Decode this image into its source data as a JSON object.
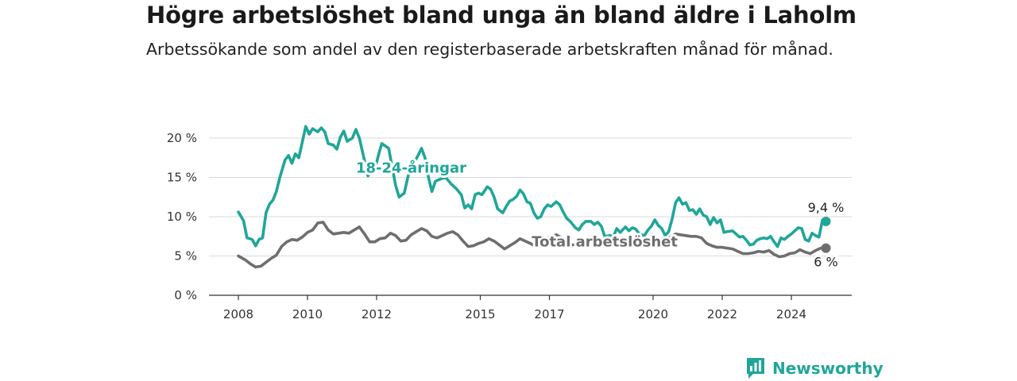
{
  "header": {
    "title": "Högre arbetslöshet bland unga än bland äldre i Laholm",
    "subtitle": "Arbetssökande som andel av den registerbaserade arbetskraften månad för månad."
  },
  "logo": {
    "text": "Newsworthy",
    "icon": "bar-chart-bubble-icon"
  },
  "colors": {
    "youth": "#1fa699",
    "total": "#6e6e6e",
    "grid": "#d9d9d9",
    "axis": "#333333"
  },
  "chart_data": {
    "type": "line",
    "title": "Högre arbetslöshet bland unga än bland äldre i Laholm",
    "subtitle": "Arbetssökande som andel av den registerbaserade arbetskraften månad för månad.",
    "xlabel": "",
    "ylabel": "",
    "xlim": [
      2008,
      2025
    ],
    "ylim": [
      0,
      22
    ],
    "grid": true,
    "x_ticks": [
      "2008",
      "2010",
      "2012",
      "2015",
      "2017",
      "2020",
      "2022",
      "2024"
    ],
    "x_tick_values": [
      2008,
      2010,
      2012,
      2015,
      2017,
      2020,
      2022,
      2024
    ],
    "y_ticks": [
      "0 %",
      "5 %",
      "10 %",
      "15 %",
      "20 %"
    ],
    "y_tick_values": [
      0,
      5,
      10,
      15,
      20
    ],
    "series": [
      {
        "name": "18-24-åringar",
        "points": [
          [
            2008.0,
            10.6
          ],
          [
            2008.15,
            9.5
          ],
          [
            2008.25,
            7.3
          ],
          [
            2008.4,
            7.1
          ],
          [
            2008.5,
            6.3
          ],
          [
            2008.6,
            7.1
          ],
          [
            2008.7,
            7.3
          ],
          [
            2008.8,
            10.5
          ],
          [
            2008.9,
            11.6
          ],
          [
            2009.0,
            12.1
          ],
          [
            2009.1,
            13.2
          ],
          [
            2009.2,
            15.0
          ],
          [
            2009.35,
            17.2
          ],
          [
            2009.45,
            17.8
          ],
          [
            2009.55,
            16.8
          ],
          [
            2009.65,
            18.0
          ],
          [
            2009.75,
            17.5
          ],
          [
            2009.85,
            19.5
          ],
          [
            2009.95,
            21.5
          ],
          [
            2010.05,
            20.5
          ],
          [
            2010.15,
            21.2
          ],
          [
            2010.3,
            20.8
          ],
          [
            2010.4,
            21.3
          ],
          [
            2010.5,
            20.8
          ],
          [
            2010.6,
            19.3
          ],
          [
            2010.75,
            19.1
          ],
          [
            2010.85,
            18.6
          ],
          [
            2010.95,
            20.1
          ],
          [
            2011.05,
            20.9
          ],
          [
            2011.15,
            19.6
          ],
          [
            2011.3,
            20.0
          ],
          [
            2011.4,
            21.1
          ],
          [
            2011.5,
            20.0
          ],
          [
            2011.6,
            18.1
          ],
          [
            2011.75,
            15.2
          ],
          [
            2011.85,
            15.7
          ],
          [
            2011.95,
            16.0
          ],
          [
            2012.05,
            17.8
          ],
          [
            2012.15,
            19.3
          ],
          [
            2012.25,
            19.0
          ],
          [
            2012.35,
            18.7
          ],
          [
            2012.45,
            16.3
          ],
          [
            2012.55,
            14.0
          ],
          [
            2012.65,
            12.5
          ],
          [
            2012.8,
            13.0
          ],
          [
            2012.9,
            15.0
          ],
          [
            2013.0,
            16.3
          ],
          [
            2013.1,
            17.0
          ],
          [
            2013.2,
            17.8
          ],
          [
            2013.3,
            18.7
          ],
          [
            2013.4,
            17.5
          ],
          [
            2013.5,
            15.0
          ],
          [
            2013.6,
            13.2
          ],
          [
            2013.7,
            14.5
          ],
          [
            2013.85,
            14.8
          ],
          [
            2014.0,
            15.0
          ],
          [
            2014.15,
            14.2
          ],
          [
            2014.3,
            13.6
          ],
          [
            2014.45,
            12.8
          ],
          [
            2014.55,
            11.1
          ],
          [
            2014.65,
            11.5
          ],
          [
            2014.75,
            11.0
          ],
          [
            2014.85,
            12.8
          ],
          [
            2014.95,
            13.0
          ],
          [
            2015.05,
            12.8
          ],
          [
            2015.2,
            13.8
          ],
          [
            2015.3,
            13.5
          ],
          [
            2015.4,
            12.5
          ],
          [
            2015.5,
            11.0
          ],
          [
            2015.65,
            10.5
          ],
          [
            2015.75,
            11.3
          ],
          [
            2015.85,
            12.0
          ],
          [
            2015.95,
            12.2
          ],
          [
            2016.05,
            12.6
          ],
          [
            2016.15,
            13.4
          ],
          [
            2016.25,
            12.9
          ],
          [
            2016.35,
            11.9
          ],
          [
            2016.45,
            11.7
          ],
          [
            2016.55,
            10.5
          ],
          [
            2016.65,
            9.8
          ],
          [
            2016.75,
            10.0
          ],
          [
            2016.85,
            11.0
          ],
          [
            2016.95,
            11.5
          ],
          [
            2017.05,
            11.3
          ],
          [
            2017.2,
            11.9
          ],
          [
            2017.3,
            11.5
          ],
          [
            2017.4,
            10.6
          ],
          [
            2017.5,
            9.8
          ],
          [
            2017.6,
            9.4
          ],
          [
            2017.75,
            8.6
          ],
          [
            2017.85,
            8.3
          ],
          [
            2017.95,
            9.0
          ],
          [
            2018.05,
            9.4
          ],
          [
            2018.2,
            9.4
          ],
          [
            2018.3,
            9.0
          ],
          [
            2018.4,
            9.3
          ],
          [
            2018.5,
            8.8
          ],
          [
            2018.6,
            7.5
          ],
          [
            2018.75,
            7.6
          ],
          [
            2018.85,
            7.5
          ],
          [
            2018.95,
            8.5
          ],
          [
            2019.05,
            8.0
          ],
          [
            2019.2,
            8.7
          ],
          [
            2019.3,
            8.2
          ],
          [
            2019.4,
            8.6
          ],
          [
            2019.5,
            8.4
          ],
          [
            2019.6,
            7.8
          ],
          [
            2019.75,
            7.6
          ],
          [
            2019.85,
            8.3
          ],
          [
            2019.95,
            8.8
          ],
          [
            2020.05,
            9.6
          ],
          [
            2020.15,
            8.9
          ],
          [
            2020.25,
            8.5
          ],
          [
            2020.35,
            7.6
          ],
          [
            2020.45,
            8.1
          ],
          [
            2020.55,
            9.7
          ],
          [
            2020.65,
            11.8
          ],
          [
            2020.75,
            12.4
          ],
          [
            2020.85,
            11.6
          ],
          [
            2020.95,
            11.8
          ],
          [
            2021.05,
            10.8
          ],
          [
            2021.15,
            10.9
          ],
          [
            2021.25,
            10.3
          ],
          [
            2021.35,
            11.0
          ],
          [
            2021.45,
            10.2
          ],
          [
            2021.55,
            10.0
          ],
          [
            2021.65,
            9.0
          ],
          [
            2021.75,
            9.9
          ],
          [
            2021.85,
            9.2
          ],
          [
            2021.95,
            9.6
          ],
          [
            2022.05,
            8.0
          ],
          [
            2022.15,
            8.1
          ],
          [
            2022.3,
            8.2
          ],
          [
            2022.4,
            7.8
          ],
          [
            2022.5,
            7.4
          ],
          [
            2022.6,
            7.5
          ],
          [
            2022.7,
            7.0
          ],
          [
            2022.8,
            6.4
          ],
          [
            2022.9,
            6.5
          ],
          [
            2023.0,
            7.0
          ],
          [
            2023.1,
            7.2
          ],
          [
            2023.2,
            7.3
          ],
          [
            2023.3,
            7.2
          ],
          [
            2023.4,
            7.5
          ],
          [
            2023.5,
            6.8
          ],
          [
            2023.6,
            6.2
          ],
          [
            2023.7,
            7.3
          ],
          [
            2023.8,
            7.1
          ],
          [
            2023.9,
            7.5
          ],
          [
            2024.0,
            7.8
          ],
          [
            2024.1,
            8.2
          ],
          [
            2024.2,
            8.6
          ],
          [
            2024.3,
            8.5
          ],
          [
            2024.4,
            7.1
          ],
          [
            2024.5,
            6.9
          ],
          [
            2024.6,
            7.9
          ],
          [
            2024.7,
            7.6
          ],
          [
            2024.8,
            7.4
          ],
          [
            2024.9,
            9.6
          ],
          [
            2025.0,
            9.4
          ]
        ]
      },
      {
        "name": "Total arbetslöshet",
        "points": [
          [
            2008.0,
            5.0
          ],
          [
            2008.2,
            4.5
          ],
          [
            2008.35,
            4.0
          ],
          [
            2008.5,
            3.6
          ],
          [
            2008.65,
            3.7
          ],
          [
            2008.8,
            4.2
          ],
          [
            2008.95,
            4.7
          ],
          [
            2009.1,
            5.1
          ],
          [
            2009.25,
            6.2
          ],
          [
            2009.4,
            6.8
          ],
          [
            2009.55,
            7.1
          ],
          [
            2009.7,
            7.0
          ],
          [
            2009.85,
            7.4
          ],
          [
            2010.0,
            8.0
          ],
          [
            2010.15,
            8.3
          ],
          [
            2010.3,
            9.2
          ],
          [
            2010.45,
            9.3
          ],
          [
            2010.6,
            8.3
          ],
          [
            2010.75,
            7.8
          ],
          [
            2010.9,
            7.9
          ],
          [
            2011.05,
            8.0
          ],
          [
            2011.2,
            7.9
          ],
          [
            2011.35,
            8.3
          ],
          [
            2011.5,
            8.7
          ],
          [
            2011.65,
            7.8
          ],
          [
            2011.8,
            6.8
          ],
          [
            2011.95,
            6.8
          ],
          [
            2012.1,
            7.2
          ],
          [
            2012.25,
            7.3
          ],
          [
            2012.4,
            7.9
          ],
          [
            2012.55,
            7.6
          ],
          [
            2012.7,
            6.9
          ],
          [
            2012.85,
            7.0
          ],
          [
            2013.0,
            7.7
          ],
          [
            2013.15,
            8.1
          ],
          [
            2013.3,
            8.5
          ],
          [
            2013.45,
            8.2
          ],
          [
            2013.6,
            7.5
          ],
          [
            2013.75,
            7.3
          ],
          [
            2013.9,
            7.6
          ],
          [
            2014.05,
            7.9
          ],
          [
            2014.2,
            8.1
          ],
          [
            2014.35,
            7.7
          ],
          [
            2014.5,
            6.9
          ],
          [
            2014.65,
            6.2
          ],
          [
            2014.8,
            6.3
          ],
          [
            2014.95,
            6.6
          ],
          [
            2015.1,
            6.8
          ],
          [
            2015.25,
            7.2
          ],
          [
            2015.4,
            6.9
          ],
          [
            2015.55,
            6.4
          ],
          [
            2015.7,
            5.9
          ],
          [
            2015.85,
            6.3
          ],
          [
            2016.0,
            6.7
          ],
          [
            2016.15,
            7.2
          ],
          [
            2016.3,
            6.9
          ],
          [
            2016.45,
            6.6
          ],
          [
            2016.6,
            6.2
          ],
          [
            2016.75,
            6.7
          ],
          [
            2016.9,
            7.2
          ],
          [
            2017.05,
            7.5
          ],
          [
            2017.2,
            7.7
          ],
          [
            2017.35,
            7.3
          ],
          [
            2017.5,
            6.8
          ],
          [
            2017.65,
            6.4
          ],
          [
            2017.8,
            6.5
          ],
          [
            2017.95,
            6.9
          ],
          [
            2018.1,
            7.0
          ],
          [
            2018.25,
            6.8
          ],
          [
            2018.4,
            6.5
          ],
          [
            2018.55,
            6.3
          ],
          [
            2018.7,
            6.4
          ],
          [
            2018.85,
            6.5
          ],
          [
            2019.0,
            6.6
          ],
          [
            2019.15,
            6.9
          ],
          [
            2019.3,
            6.8
          ],
          [
            2019.45,
            6.6
          ],
          [
            2019.6,
            6.4
          ],
          [
            2019.75,
            6.5
          ],
          [
            2019.9,
            6.8
          ],
          [
            2020.05,
            7.0
          ],
          [
            2020.2,
            7.2
          ],
          [
            2020.35,
            7.1
          ],
          [
            2020.5,
            7.4
          ],
          [
            2020.65,
            7.8
          ],
          [
            2020.8,
            7.7
          ],
          [
            2020.95,
            7.6
          ],
          [
            2021.1,
            7.5
          ],
          [
            2021.25,
            7.5
          ],
          [
            2021.4,
            7.3
          ],
          [
            2021.55,
            6.6
          ],
          [
            2021.7,
            6.3
          ],
          [
            2021.85,
            6.1
          ],
          [
            2022.0,
            6.1
          ],
          [
            2022.15,
            6.0
          ],
          [
            2022.3,
            5.9
          ],
          [
            2022.45,
            5.6
          ],
          [
            2022.6,
            5.3
          ],
          [
            2022.75,
            5.3
          ],
          [
            2022.9,
            5.4
          ],
          [
            2023.05,
            5.6
          ],
          [
            2023.2,
            5.5
          ],
          [
            2023.35,
            5.7
          ],
          [
            2023.5,
            5.2
          ],
          [
            2023.65,
            4.9
          ],
          [
            2023.8,
            5.0
          ],
          [
            2023.95,
            5.3
          ],
          [
            2024.1,
            5.4
          ],
          [
            2024.25,
            5.8
          ],
          [
            2024.4,
            5.5
          ],
          [
            2024.55,
            5.3
          ],
          [
            2024.7,
            5.7
          ],
          [
            2024.85,
            6.0
          ],
          [
            2025.0,
            6.0
          ]
        ]
      }
    ],
    "series_labels": [
      {
        "text": "18-24-åringar",
        "x": 2013.0,
        "y": 15.6
      },
      {
        "text": "Total arbetslöshet",
        "x": 2018.6,
        "y": 6.2
      }
    ],
    "end_labels": [
      "9,4 %",
      "6 %"
    ]
  }
}
